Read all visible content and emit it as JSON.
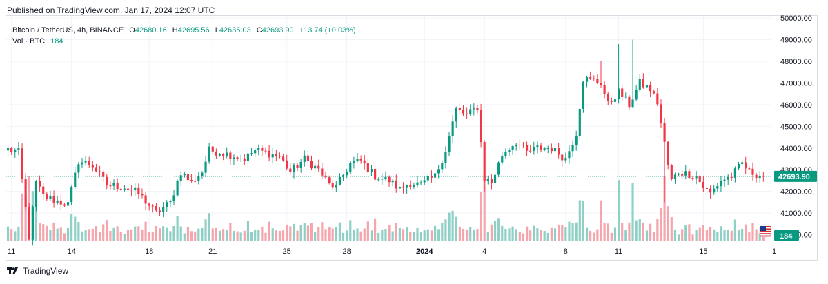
{
  "published": "Published on TradingView.com, Jan 17, 2024 12:07 UTC",
  "legend": {
    "symbol": "Bitcoin / TetherUS, 4h, BINANCE",
    "o_label": "O",
    "o_value": "42680.16",
    "h_label": "H",
    "h_value": "42695.56",
    "l_label": "L",
    "l_value": "42635.03",
    "c_label": "C",
    "c_value": "42693.90",
    "change": "+13.74 (+0.03%)",
    "vol_label": "Vol · BTC",
    "vol_value": "184"
  },
  "footer": {
    "brand": "TradingView"
  },
  "colors": {
    "up": "#089981",
    "down": "#f23645",
    "up_volume": "#8fd0c6",
    "down_volume": "#f5a5ab",
    "grid": "#f0f3fa",
    "last_price_label": "#089981"
  },
  "icons": {
    "flag": "us-flag-icon",
    "logo": "tradingview-logo-icon"
  },
  "chart_data": {
    "type": "candlestick",
    "title": "Bitcoin / TetherUS, 4h, BINANCE",
    "ylim": [
      39700,
      50100
    ],
    "y_ticks": [
      "50000.00",
      "49000.00",
      "48000.00",
      "47000.00",
      "46000.00",
      "45000.00",
      "44000.00",
      "43000.00",
      "42000.00",
      "41000.00",
      "40000.00"
    ],
    "x_tick_labels": [
      {
        "label": "11",
        "index": 1
      },
      {
        "label": "14",
        "index": 18
      },
      {
        "label": "18",
        "index": 40
      },
      {
        "label": "21",
        "index": 58
      },
      {
        "label": "25",
        "index": 79
      },
      {
        "label": "28",
        "index": 96
      },
      {
        "label": "2024",
        "index": 118
      },
      {
        "label": "4",
        "index": 135
      },
      {
        "label": "8",
        "index": 158
      },
      {
        "label": "11",
        "index": 173
      },
      {
        "label": "15",
        "index": 197
      },
      {
        "label": "1",
        "index": 212
      }
    ],
    "last_price": "42693.90",
    "last_volume": "184",
    "anchor_closes": [
      [
        0,
        43950
      ],
      [
        3,
        43800
      ],
      [
        6,
        39900
      ],
      [
        8,
        42400
      ],
      [
        10,
        41800
      ],
      [
        13,
        41600
      ],
      [
        17,
        41400
      ],
      [
        20,
        43400
      ],
      [
        24,
        43200
      ],
      [
        28,
        42300
      ],
      [
        33,
        42200
      ],
      [
        37,
        41900
      ],
      [
        42,
        41000
      ],
      [
        46,
        41500
      ],
      [
        49,
        42900
      ],
      [
        52,
        42400
      ],
      [
        55,
        42900
      ],
      [
        57,
        43900
      ],
      [
        60,
        43800
      ],
      [
        64,
        43650
      ],
      [
        67,
        43500
      ],
      [
        70,
        43900
      ],
      [
        73,
        43800
      ],
      [
        77,
        43600
      ],
      [
        80,
        42900
      ],
      [
        84,
        43500
      ],
      [
        88,
        43000
      ],
      [
        91,
        42300
      ],
      [
        93,
        42200
      ],
      [
        97,
        43300
      ],
      [
        100,
        43400
      ],
      [
        104,
        42700
      ],
      [
        108,
        42500
      ],
      [
        111,
        42100
      ],
      [
        114,
        42400
      ],
      [
        117,
        42300
      ],
      [
        121,
        42700
      ],
      [
        124,
        43900
      ],
      [
        127,
        45800
      ],
      [
        130,
        45500
      ],
      [
        133,
        45900
      ],
      [
        135,
        42600
      ],
      [
        137,
        42400
      ],
      [
        140,
        43700
      ],
      [
        144,
        44300
      ],
      [
        147,
        43800
      ],
      [
        150,
        44000
      ],
      [
        154,
        44000
      ],
      [
        158,
        43500
      ],
      [
        161,
        44700
      ],
      [
        163,
        47200
      ],
      [
        166,
        47100
      ],
      [
        168,
        47000
      ],
      [
        170,
        46000
      ],
      [
        173,
        46600
      ],
      [
        176,
        46000
      ],
      [
        179,
        47000
      ],
      [
        182,
        46700
      ],
      [
        184,
        46100
      ],
      [
        186,
        44200
      ],
      [
        187,
        43200
      ],
      [
        188,
        42500
      ],
      [
        190,
        42900
      ],
      [
        193,
        42800
      ],
      [
        195,
        42700
      ],
      [
        197,
        42200
      ],
      [
        199,
        41900
      ],
      [
        202,
        42500
      ],
      [
        205,
        42700
      ],
      [
        208,
        43300
      ],
      [
        210,
        42900
      ],
      [
        214,
        42694
      ]
    ],
    "wick_spikes": [
      [
        6,
        "low",
        39800
      ],
      [
        135,
        "low",
        42000
      ],
      [
        168,
        "high",
        48000
      ],
      [
        173,
        "high",
        48800
      ],
      [
        177,
        "high",
        49000
      ],
      [
        186,
        "low",
        41500
      ]
    ],
    "volume_ylim": [
      0,
      600
    ]
  }
}
